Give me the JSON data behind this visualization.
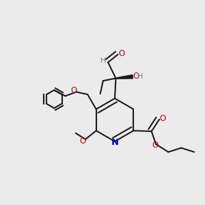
{
  "bg_color": "#ebebeb",
  "bond_color": "#1a1a1a",
  "bond_lw": 1.5,
  "atom_colors": {
    "O": "#cc0000",
    "N": "#0000cc",
    "H_stereo": "#5f8080",
    "C": "#1a1a1a"
  },
  "font_size": 8.5,
  "stereo_font_size": 8.0
}
